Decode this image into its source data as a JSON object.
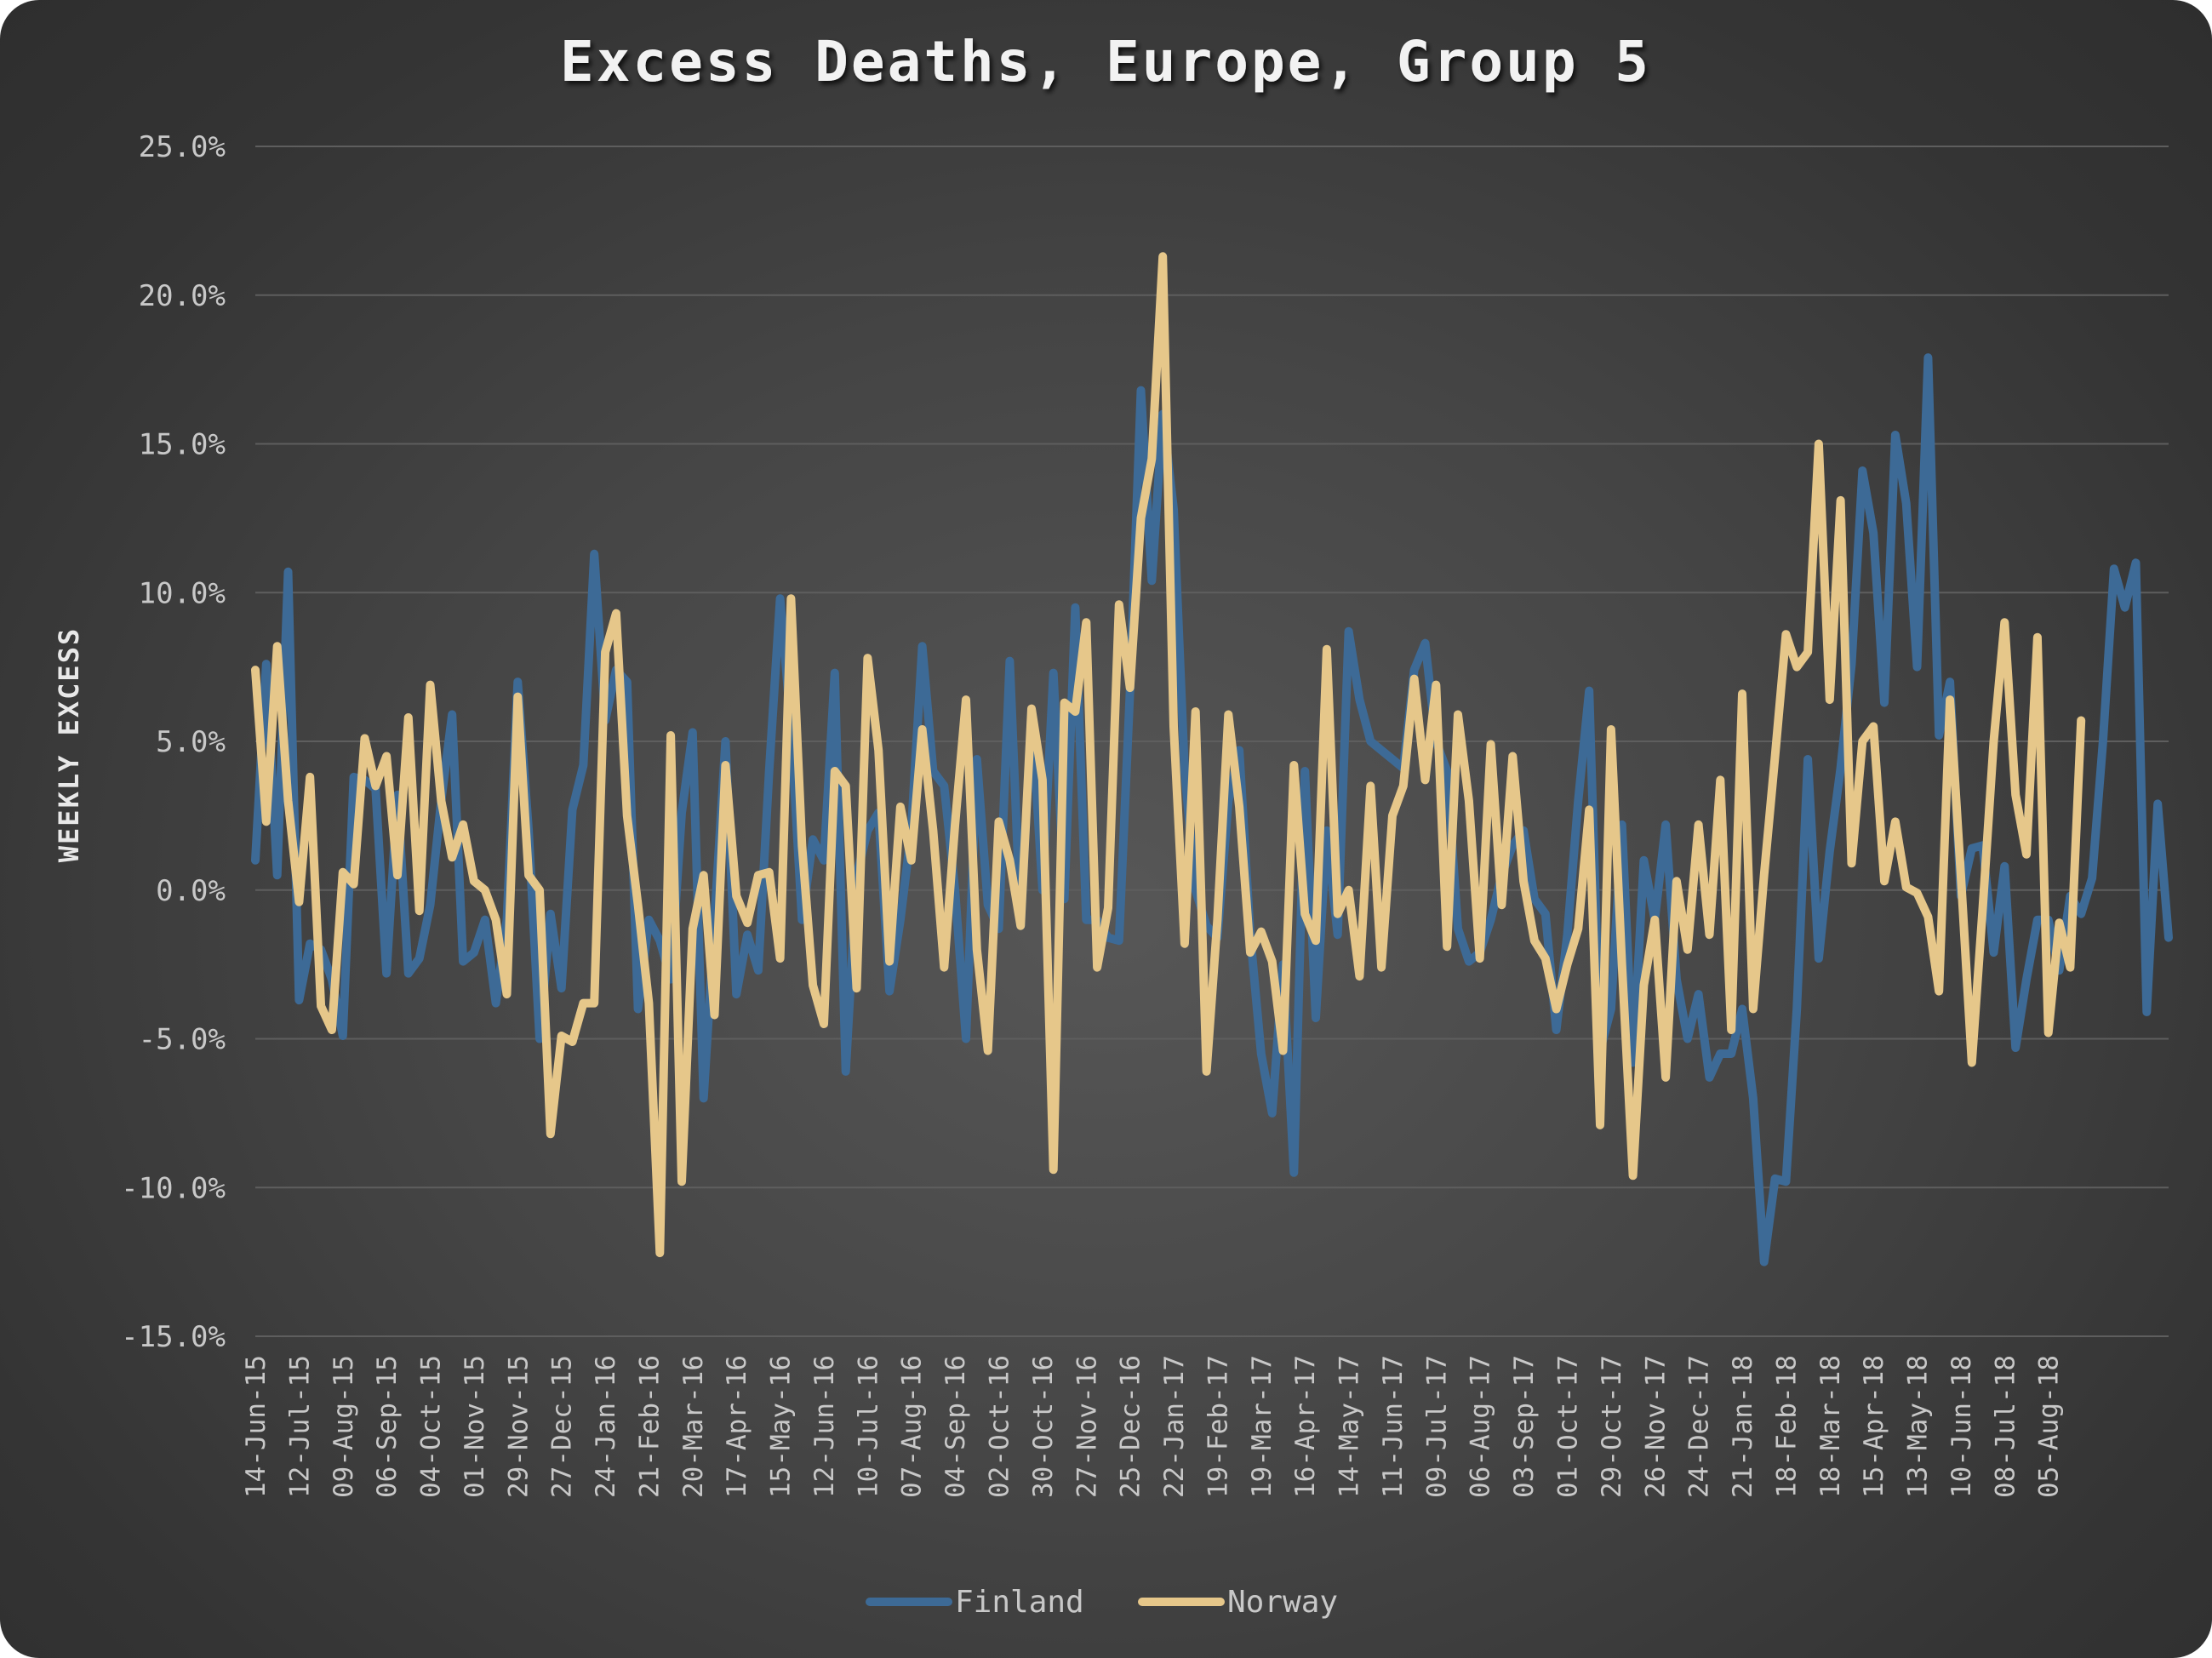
{
  "chart_data": {
    "type": "line",
    "title": "Excess Deaths, Europe, Group 5",
    "ylabel": "WEEKLY EXCESS",
    "xlabel": "",
    "ylim": [
      -15,
      25
    ],
    "y_ticks": [
      "25.0%",
      "20.0%",
      "15.0%",
      "10.0%",
      "5.0%",
      "0.0%",
      "-5.0%",
      "-10.0%",
      "-15.0%"
    ],
    "x_start": "14-Jun-15",
    "x_tick_labels": [
      "14-Jun-15",
      "12-Jul-15",
      "09-Aug-15",
      "06-Sep-15",
      "04-Oct-15",
      "01-Nov-15",
      "29-Nov-15",
      "27-Dec-15",
      "24-Jan-16",
      "21-Feb-16",
      "20-Mar-16",
      "17-Apr-16",
      "15-May-16",
      "12-Jun-16",
      "10-Jul-16",
      "07-Aug-16",
      "04-Sep-16",
      "02-Oct-16",
      "30-Oct-16",
      "27-Nov-16",
      "25-Dec-16",
      "22-Jan-17",
      "19-Feb-17",
      "19-Mar-17",
      "16-Apr-17",
      "14-May-17",
      "11-Jun-17",
      "09-Jul-17",
      "06-Aug-17",
      "03-Sep-17",
      "01-Oct-17",
      "29-Oct-17",
      "26-Nov-17",
      "24-Dec-17",
      "21-Jan-18",
      "18-Feb-18",
      "18-Mar-18",
      "15-Apr-18",
      "13-May-18",
      "10-Jun-18",
      "08-Jul-18",
      "05-Aug-18"
    ],
    "grid": true,
    "legend_position": "bottom",
    "series": [
      {
        "name": "Finland",
        "color": "#3d6a96",
        "values": [
          1.0,
          7.6,
          0.5,
          10.7,
          -3.7,
          -1.8,
          -2.0,
          -3.0,
          -4.9,
          3.8,
          3.7,
          3.4,
          -2.8,
          3.2,
          -2.8,
          -2.3,
          -0.5,
          3.0,
          5.9,
          -2.4,
          -2.1,
          -1.0,
          -3.8,
          -1.0,
          7.0,
          2.0,
          -5.0,
          -0.8,
          -3.3,
          2.7,
          4.2,
          11.3,
          5.7,
          7.4,
          7.0,
          -4.0,
          -1.0,
          -1.7,
          -3.0,
          2.6,
          5.3,
          -7.0,
          -1.0,
          5.0,
          -3.5,
          -1.5,
          -2.7,
          4.0,
          9.8,
          5.5,
          -1.0,
          1.7,
          1.0,
          7.3,
          -6.1,
          0.5,
          2.0,
          2.6,
          -3.4,
          -1.0,
          2.0,
          8.2,
          4.0,
          3.5,
          0.0,
          -5.0,
          4.4,
          -0.5,
          -1.3,
          7.7,
          -1.2,
          6.0,
          0.0,
          7.3,
          -0.3,
          9.5,
          -1.0,
          -1.0,
          -1.6,
          -1.7,
          6.7,
          16.8,
          10.4,
          16.0,
          12.8,
          4.0,
          0.0,
          -1.2,
          -1.6,
          3.0,
          4.7,
          -1.5,
          -5.5,
          -7.5,
          -2.5,
          -9.5,
          4.0,
          -4.3,
          2.0,
          -1.5,
          8.7,
          6.4,
          5.0,
          4.7,
          4.4,
          4.1,
          7.4,
          8.3,
          5.0,
          4.0,
          -1.3,
          -2.4,
          -2.1,
          -1.0,
          0.5,
          1.5,
          2.0,
          -0.3,
          -0.8,
          -4.7,
          -1.5,
          3.0,
          6.7,
          -5.4,
          -4.0,
          2.2,
          -5.8,
          1.0,
          -1.0,
          2.2,
          -3.0,
          -5.0,
          -3.5,
          -6.3,
          -5.5,
          -5.5,
          -4.0,
          -7.0,
          -12.5,
          -9.7,
          -9.8,
          -4.0,
          4.4,
          -2.3,
          1.3,
          4.1,
          7.6,
          14.1,
          12.0,
          6.3,
          15.3,
          13.0,
          7.5,
          17.9,
          5.2,
          7.0,
          -0.2,
          1.4,
          1.5,
          -2.1,
          0.8,
          -5.3,
          -3.0,
          -1.0,
          -1.0,
          -2.7,
          -0.2,
          -0.8,
          0.4,
          5.0,
          10.8,
          9.5,
          11.0,
          -4.1,
          2.9,
          -1.6
        ]
      },
      {
        "name": "Norway",
        "color": "#e6c78a",
        "values": [
          7.4,
          2.3,
          8.2,
          3.0,
          -0.4,
          3.8,
          -3.9,
          -4.7,
          0.6,
          0.2,
          5.1,
          3.5,
          4.5,
          0.5,
          5.8,
          -0.7,
          6.9,
          3.0,
          1.1,
          2.2,
          0.3,
          0.0,
          -1.0,
          -3.5,
          6.5,
          0.5,
          0.0,
          -8.2,
          -4.9,
          -5.1,
          -3.8,
          -3.8,
          8.0,
          9.3,
          2.5,
          -0.5,
          -3.8,
          -12.2,
          5.2,
          -9.8,
          -1.3,
          0.5,
          -4.2,
          4.2,
          -0.2,
          -1.1,
          0.5,
          0.6,
          -2.3,
          9.8,
          1.5,
          -3.2,
          -4.5,
          4.0,
          3.5,
          -3.3,
          7.8,
          4.7,
          -2.4,
          2.8,
          1.0,
          5.4,
          2.0,
          -2.6,
          2.2,
          6.4,
          -2.0,
          -5.4,
          2.3,
          1.0,
          -1.2,
          6.1,
          3.7,
          -9.4,
          6.3,
          6.0,
          9.0,
          -2.6,
          -0.6,
          9.6,
          6.8,
          12.5,
          14.5,
          21.3,
          5.5,
          -1.8,
          6.0,
          -6.1,
          -1.0,
          5.9,
          2.8,
          -2.1,
          -1.4,
          -2.4,
          -5.4,
          4.2,
          -0.8,
          -1.7,
          8.1,
          -0.8,
          0.0,
          -2.9,
          3.5,
          -2.6,
          2.5,
          3.5,
          7.1,
          3.7,
          6.9,
          -1.9,
          5.9,
          3.0,
          -2.3,
          4.9,
          -0.5,
          4.5,
          0.3,
          -1.7,
          -2.3,
          -4.0,
          -2.5,
          -1.3,
          2.7,
          -7.9,
          5.4,
          -2.5,
          -9.6,
          -3.2,
          -1.0,
          -6.3,
          0.3,
          -2.0,
          2.2,
          -1.5,
          3.7,
          -4.7,
          6.6,
          -4.0,
          0.5,
          4.5,
          8.6,
          7.5,
          8.0,
          15.0,
          6.4,
          13.1,
          0.9,
          5.0,
          5.5,
          0.3,
          2.3,
          0.1,
          -0.1,
          -0.9,
          -3.4,
          6.4,
          0.5,
          -5.8,
          -0.6,
          5.0,
          9.0,
          3.2,
          1.2,
          8.5,
          -4.8,
          -1.1,
          -2.6,
          5.7
        ]
      }
    ]
  }
}
